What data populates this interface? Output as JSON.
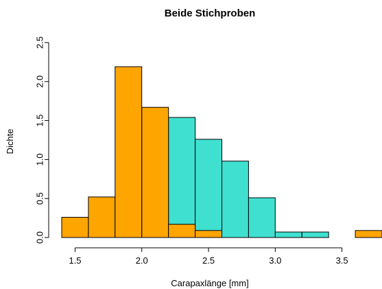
{
  "chart_data": {
    "type": "bar",
    "title": "Beide Stichproben",
    "xlabel": "Carapaxlänge [mm]",
    "ylabel": "Dichte",
    "xlim": [
      1.4,
      3.8
    ],
    "ylim": [
      0,
      2.5
    ],
    "x_ticks": [
      "1.5",
      "2.0",
      "2.5",
      "3.0",
      "3.5"
    ],
    "y_ticks": [
      "0.0",
      "0.5",
      "1.0",
      "1.5",
      "2.0",
      "2.5"
    ],
    "bin_width": 0.2,
    "grid": false,
    "legend": "none",
    "series": [
      {
        "color": "#40E0D0",
        "bin_starts": [
          2.2,
          2.4,
          2.6,
          2.8,
          3.0,
          3.2
        ],
        "values": [
          1.54,
          1.26,
          0.98,
          0.51,
          0.07,
          0.07
        ]
      },
      {
        "color": "#FFA500",
        "bin_starts": [
          1.4,
          1.6,
          1.8,
          2.0,
          2.2,
          2.4,
          3.6
        ],
        "values": [
          0.26,
          0.52,
          2.19,
          1.67,
          0.17,
          0.09,
          0.09
        ]
      }
    ]
  }
}
